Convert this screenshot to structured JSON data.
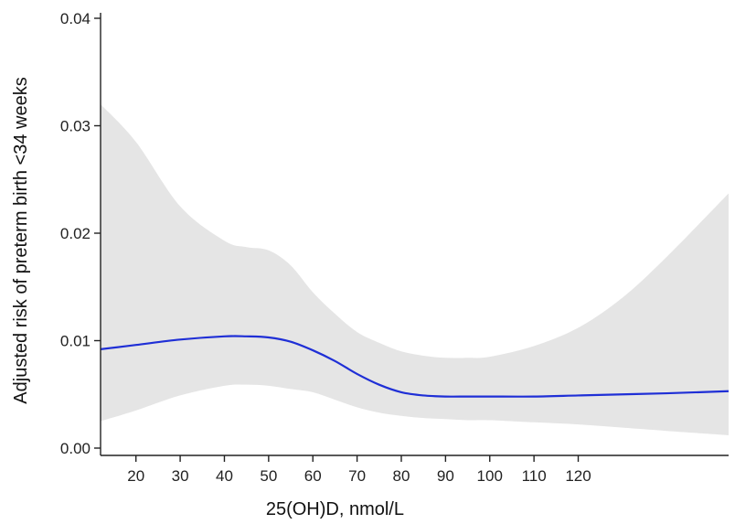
{
  "chart_data": {
    "type": "line",
    "title": "",
    "xlabel": "25(OH)D, nmol/L",
    "ylabel": "Adjusted risk of preterm birth <34 weeks",
    "xlim": [
      12,
      154
    ],
    "ylim": [
      0,
      0.04
    ],
    "x_ticks": [
      20,
      30,
      40,
      50,
      60,
      70,
      80,
      90,
      100,
      110,
      120
    ],
    "y_ticks": [
      0.0,
      0.01,
      0.02,
      0.03,
      0.04
    ],
    "y_tick_labels": [
      "0.00",
      "0.01",
      "0.02",
      "0.03",
      "0.04"
    ],
    "grid": false,
    "colors": {
      "line": "#1f2fd6",
      "band": "#e5e5e5"
    },
    "series": [
      {
        "kind": "line",
        "x": [
          12,
          20,
          30,
          40,
          45,
          50,
          55,
          60,
          65,
          70,
          75,
          80,
          85,
          90,
          95,
          100,
          110,
          120,
          130,
          140,
          154
        ],
        "y": [
          0.0092,
          0.0096,
          0.0101,
          0.0104,
          0.0104,
          0.0103,
          0.0099,
          0.0091,
          0.0081,
          0.0069,
          0.0059,
          0.0052,
          0.0049,
          0.0048,
          0.0048,
          0.0048,
          0.0048,
          0.0049,
          0.005,
          0.0051,
          0.0053
        ]
      },
      {
        "kind": "band",
        "x": [
          12,
          20,
          30,
          40,
          45,
          50,
          55,
          60,
          65,
          70,
          75,
          80,
          85,
          90,
          95,
          100,
          110,
          120,
          130,
          140,
          154
        ],
        "upper": [
          0.032,
          0.0285,
          0.0225,
          0.0193,
          0.0187,
          0.0184,
          0.017,
          0.0145,
          0.0125,
          0.0108,
          0.0098,
          0.009,
          0.0086,
          0.0084,
          0.0084,
          0.0085,
          0.0095,
          0.0112,
          0.014,
          0.0178,
          0.0237
        ],
        "lower": [
          0.0025,
          0.0035,
          0.0049,
          0.0058,
          0.0059,
          0.0058,
          0.0055,
          0.0052,
          0.0045,
          0.0038,
          0.0033,
          0.003,
          0.0028,
          0.0027,
          0.0026,
          0.0026,
          0.0024,
          0.0022,
          0.0019,
          0.0016,
          0.0012
        ]
      }
    ]
  }
}
